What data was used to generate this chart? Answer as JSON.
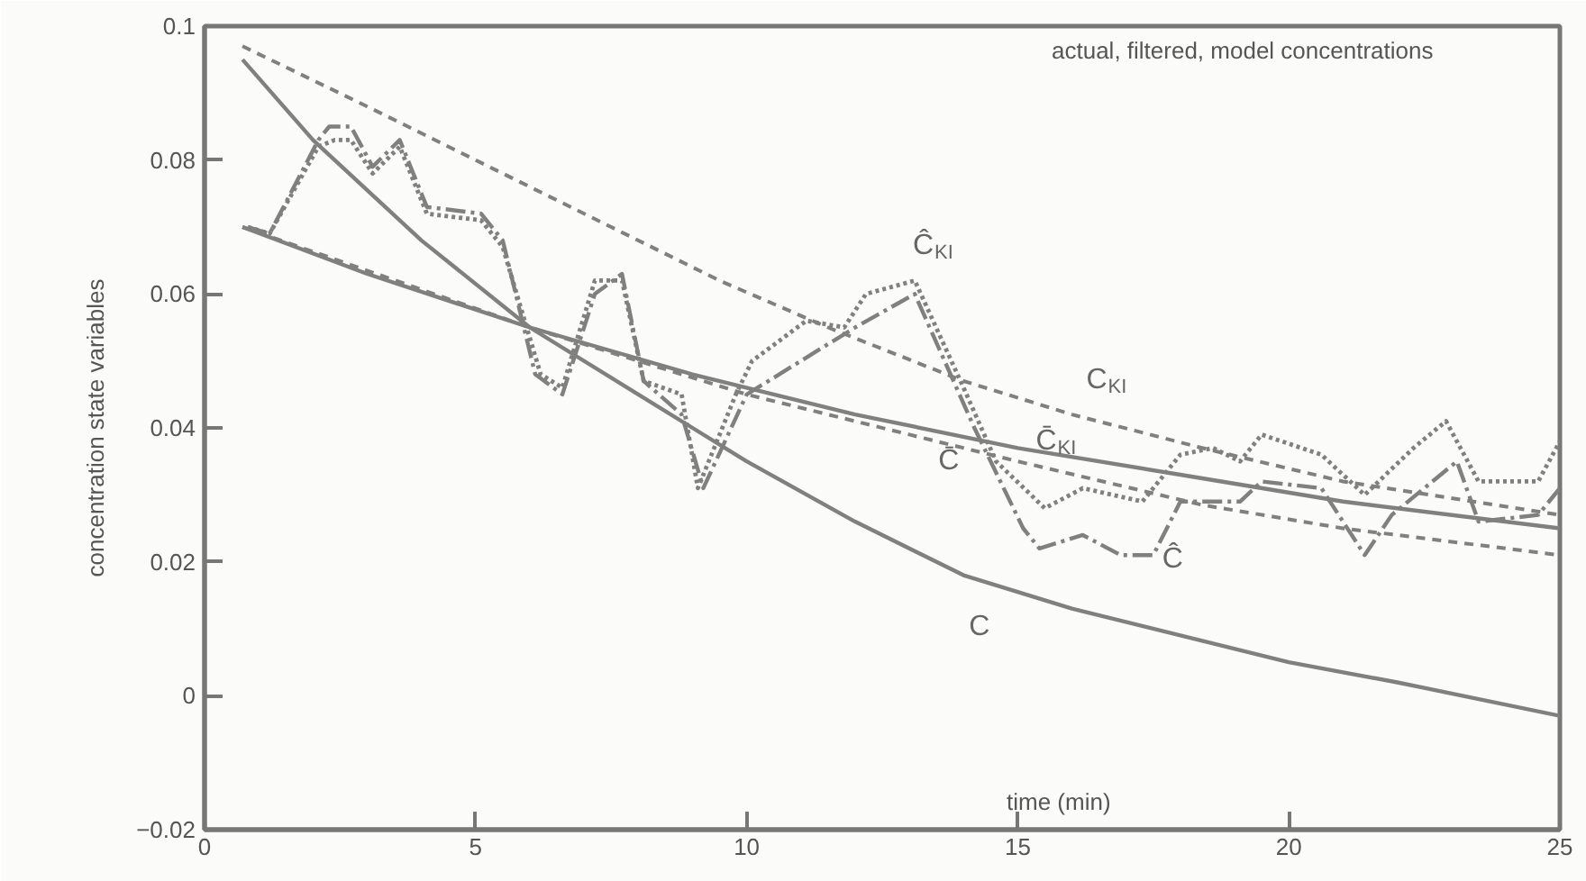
{
  "chart_data": {
    "type": "line",
    "title": "actual, filtered, model concentrations",
    "xlabel": "time (min)",
    "ylabel": "concentration state variables",
    "xlim": [
      0,
      25
    ],
    "xticks": [
      0,
      5,
      10,
      15,
      20,
      25
    ],
    "ylim": [
      -0.02,
      0.1
    ],
    "yticks": [
      {
        "value": -0.02,
        "label": "−0.02"
      },
      0,
      0.02,
      0.04,
      0.06,
      0.08,
      0.1
    ],
    "grid": false,
    "series": [
      {
        "name": "C",
        "color": "#808080",
        "line_style": "solid",
        "x": [
          0.7,
          2,
          4,
          6,
          8,
          10,
          12,
          14,
          16,
          18,
          20,
          22,
          25
        ],
        "values": [
          0.095,
          0.083,
          0.068,
          0.055,
          0.045,
          0.035,
          0.026,
          0.018,
          0.013,
          0.009,
          0.005,
          0.002,
          -0.003
        ]
      },
      {
        "name": "C̄",
        "color": "#808080",
        "line_style": "solid",
        "x": [
          0.7,
          3,
          6,
          9,
          12,
          15,
          18,
          21,
          25
        ],
        "values": [
          0.07,
          0.063,
          0.055,
          0.048,
          0.042,
          0.037,
          0.033,
          0.029,
          0.025
        ]
      },
      {
        "name": "C$_{KI}$",
        "color": "#808080",
        "line_style": "dashed",
        "x": [
          0.7,
          3,
          5,
          7.5,
          9.5,
          11.5,
          14,
          16,
          18.4,
          21,
          25
        ],
        "values": [
          0.097,
          0.088,
          0.08,
          0.07,
          0.062,
          0.055,
          0.047,
          0.042,
          0.037,
          0.032,
          0.027
        ]
      },
      {
        "name": "C̄$_{KI}$",
        "color": "#808080",
        "line_style": "dashed",
        "x": [
          0.7,
          6,
          10,
          13,
          15,
          18.4,
          21,
          25
        ],
        "values": [
          0.07,
          0.055,
          0.045,
          0.039,
          0.035,
          0.0285,
          0.025,
          0.021
        ]
      },
      {
        "name": "Ĉ",
        "color": "#808080",
        "line_style": "dashdot",
        "x": [
          0.8,
          1.2,
          2.1,
          2.3,
          2.7,
          3.1,
          3.6,
          4.1,
          5.1,
          5.5,
          6.1,
          6.6,
          7.2,
          7.7,
          8.1,
          8.8,
          9.2,
          10,
          11,
          12,
          13.1,
          14.2,
          15.1,
          15.4,
          16.2,
          16.9,
          17.5,
          18,
          19.1,
          19.5,
          20.6,
          21.4,
          21.9,
          23.1,
          23.5,
          24.6,
          25
        ],
        "values": [
          0.07,
          0.069,
          0.083,
          0.085,
          0.085,
          0.079,
          0.083,
          0.073,
          0.072,
          0.068,
          0.048,
          0.045,
          0.06,
          0.063,
          0.047,
          0.042,
          0.031,
          0.045,
          0.05,
          0.055,
          0.06,
          0.04,
          0.025,
          0.022,
          0.024,
          0.021,
          0.021,
          0.029,
          0.029,
          0.032,
          0.031,
          0.021,
          0.027,
          0.035,
          0.026,
          0.027,
          0.031
        ]
      },
      {
        "name": "Ĉ$_{KI}$",
        "color": "#808080",
        "line_style": "dotted",
        "x": [
          0.8,
          1.2,
          2.1,
          2.4,
          2.7,
          3.1,
          3.6,
          4.1,
          5.1,
          5.5,
          6.2,
          6.6,
          7.2,
          7.7,
          8.1,
          8.8,
          9.1,
          9.8,
          10.1,
          11.1,
          11.8,
          12.2,
          13.1,
          14,
          14.6,
          15.5,
          16.2,
          17.3,
          18,
          18.6,
          19.1,
          19.5,
          20.6,
          21.4,
          22.3,
          22.9,
          23.5,
          24.6,
          25
        ],
        "values": [
          0.07,
          0.069,
          0.082,
          0.083,
          0.083,
          0.078,
          0.082,
          0.072,
          0.071,
          0.067,
          0.048,
          0.046,
          0.062,
          0.062,
          0.047,
          0.045,
          0.031,
          0.045,
          0.05,
          0.056,
          0.055,
          0.06,
          0.062,
          0.046,
          0.035,
          0.028,
          0.031,
          0.029,
          0.036,
          0.037,
          0.035,
          0.039,
          0.036,
          0.03,
          0.037,
          0.041,
          0.032,
          0.032,
          0.038
        ]
      }
    ]
  }
}
